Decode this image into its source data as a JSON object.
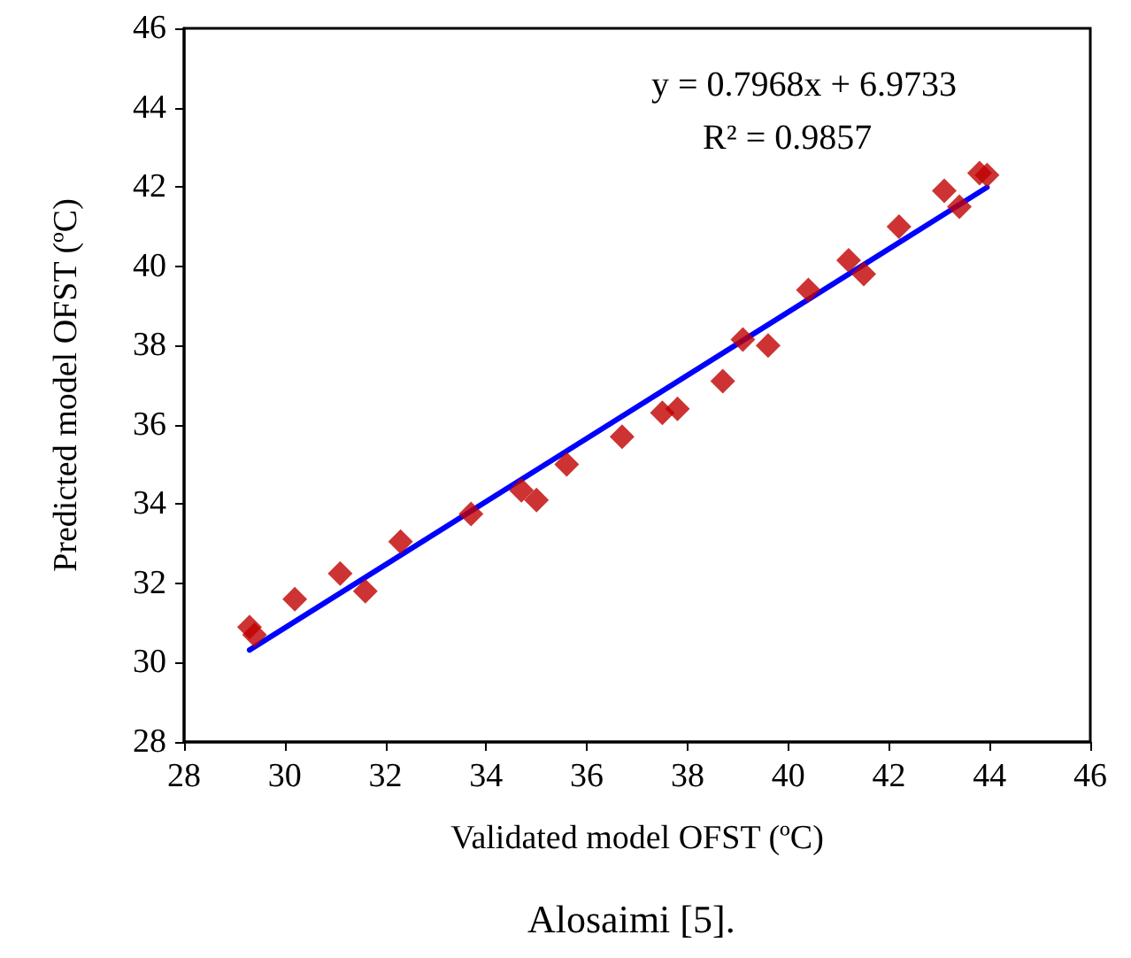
{
  "chart_data": {
    "type": "scatter",
    "xlabel": "Validated model OFST (ºC)",
    "ylabel": "Predicted model OFST (ºC)",
    "annotations": [
      "y = 0.7968x + 6.9733",
      "R² = 0.9857",
      "Alosaimi [5]."
    ],
    "xlim": [
      28,
      46
    ],
    "xticks": [
      28,
      30,
      32,
      34,
      36,
      38,
      40,
      42,
      44,
      46
    ],
    "ylim": [
      28,
      46
    ],
    "yticks": [
      28,
      30,
      32,
      34,
      36,
      38,
      40,
      42,
      44,
      46
    ],
    "grid": false,
    "marker": "diamond",
    "series": [
      {
        "color": "#c00000",
        "x": [
          29.3,
          29.4,
          30.2,
          31.1,
          31.6,
          32.3,
          33.7,
          34.7,
          35.0,
          35.6,
          36.7,
          37.5,
          37.8,
          38.7,
          39.1,
          39.6,
          40.4,
          41.2,
          41.5,
          42.2,
          43.1,
          43.4,
          43.8,
          43.95
        ],
        "values": [
          30.9,
          30.7,
          31.6,
          32.25,
          31.8,
          33.05,
          33.75,
          34.35,
          34.1,
          35.0,
          35.7,
          36.3,
          36.4,
          37.1,
          38.15,
          38.0,
          39.4,
          40.15,
          39.8,
          41.0,
          41.9,
          41.5,
          42.35,
          42.3
        ]
      },
      {
        "type": "line",
        "color": "#0000ff",
        "marker": "none",
        "line_style": "solid",
        "x": [
          29.3,
          43.95
        ],
        "values": [
          30.32,
          41.99
        ]
      }
    ]
  }
}
